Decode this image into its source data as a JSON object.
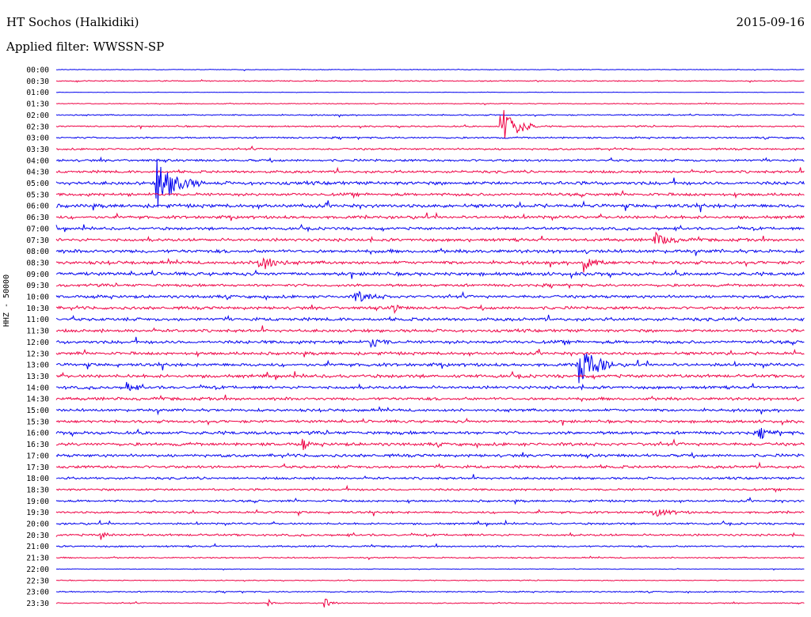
{
  "header": {
    "station": "HT Sochos (Halkidiki)",
    "filter": "Applied filter: WWSSN-SP",
    "date": "2015-09-16"
  },
  "chart_data": {
    "type": "line",
    "title": "HT Sochos (Halkidiki)",
    "subtitle": "Applied filter: WWSSN-SP",
    "ylabel": "HHZ - 50000",
    "xlabel": "",
    "colors": [
      "#0000ee",
      "#ee0044"
    ],
    "row_labels": [
      "00:00",
      "00:30",
      "01:00",
      "01:30",
      "02:00",
      "02:30",
      "03:00",
      "03:30",
      "04:00",
      "04:30",
      "05:00",
      "05:30",
      "06:00",
      "06:30",
      "07:00",
      "07:30",
      "08:00",
      "08:30",
      "09:00",
      "09:30",
      "10:00",
      "10:30",
      "11:00",
      "11:30",
      "12:00",
      "12:30",
      "13:00",
      "13:30",
      "14:00",
      "14:30",
      "15:00",
      "15:30",
      "16:00",
      "16:30",
      "17:00",
      "17:30",
      "18:00",
      "18:30",
      "19:00",
      "19:30",
      "20:00",
      "20:30",
      "21:00",
      "21:30",
      "22:00",
      "22:30",
      "23:00",
      "23:30"
    ],
    "noise_level": [
      0.3,
      0.5,
      0.2,
      0.4,
      0.6,
      0.7,
      0.8,
      0.9,
      1.1,
      1.2,
      1.6,
      1.4,
      1.7,
      1.4,
      1.3,
      1.4,
      1.6,
      1.5,
      1.6,
      1.3,
      1.4,
      1.4,
      1.5,
      1.4,
      1.5,
      1.4,
      1.5,
      1.5,
      1.4,
      1.4,
      1.3,
      1.3,
      1.5,
      1.5,
      1.4,
      1.3,
      1.1,
      1.0,
      1.0,
      1.0,
      0.9,
      1.0,
      0.8,
      0.6,
      0.3,
      0.4,
      0.6,
      0.5
    ],
    "events": [
      {
        "row": 5,
        "t": 0.595,
        "amp": 28,
        "dur": 0.05
      },
      {
        "row": 10,
        "t": 0.135,
        "amp": 30,
        "dur": 0.06
      },
      {
        "row": 17,
        "t": 0.27,
        "amp": 14,
        "dur": 0.04
      },
      {
        "row": 17,
        "t": 0.705,
        "amp": 14,
        "dur": 0.03
      },
      {
        "row": 26,
        "t": 0.7,
        "amp": 30,
        "dur": 0.05
      },
      {
        "row": 24,
        "t": 0.42,
        "amp": 8,
        "dur": 0.03
      },
      {
        "row": 15,
        "t": 0.8,
        "amp": 8,
        "dur": 0.05
      },
      {
        "row": 28,
        "t": 0.095,
        "amp": 7,
        "dur": 0.02
      },
      {
        "row": 33,
        "t": 0.33,
        "amp": 8,
        "dur": 0.01
      },
      {
        "row": 32,
        "t": 0.94,
        "amp": 6,
        "dur": 0.03
      },
      {
        "row": 39,
        "t": 0.8,
        "amp": 5,
        "dur": 0.05
      },
      {
        "row": 41,
        "t": 0.06,
        "amp": 5,
        "dur": 0.02
      },
      {
        "row": 47,
        "t": 0.36,
        "amp": 8,
        "dur": 0.02
      },
      {
        "row": 47,
        "t": 0.285,
        "amp": 5,
        "dur": 0.01
      },
      {
        "row": 20,
        "t": 0.4,
        "amp": 7,
        "dur": 0.05
      },
      {
        "row": 21,
        "t": 0.45,
        "amp": 6,
        "dur": 0.02
      }
    ]
  }
}
